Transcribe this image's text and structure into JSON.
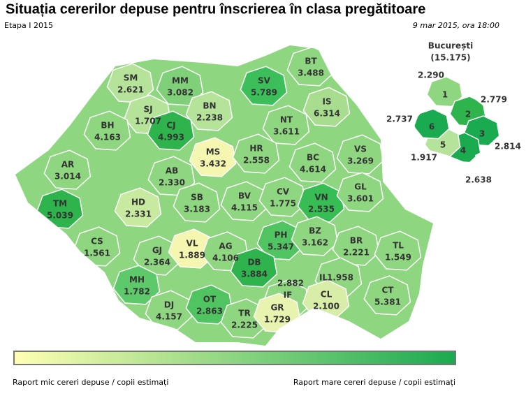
{
  "header": {
    "title": "Situația cererilor depuse pentru înscrierea în clasa pregătitoare",
    "subtitle": "Etapa I 2015",
    "timestamp": "9 mar 2015, ora 18:00"
  },
  "counties": [
    {
      "code": "SM",
      "value": "2.621"
    },
    {
      "code": "MM",
      "value": "3.082"
    },
    {
      "code": "BT",
      "value": "3.488"
    },
    {
      "code": "SV",
      "value": "5.789"
    },
    {
      "code": "SJ",
      "value": "1.707"
    },
    {
      "code": "BN",
      "value": "2.238"
    },
    {
      "code": "IS",
      "value": "6.314"
    },
    {
      "code": "BH",
      "value": "4.163"
    },
    {
      "code": "CJ",
      "value": "4.993"
    },
    {
      "code": "NT",
      "value": "3.611"
    },
    {
      "code": "MS",
      "value": "3.432"
    },
    {
      "code": "HR",
      "value": "2.558"
    },
    {
      "code": "VS",
      "value": "3.269"
    },
    {
      "code": "AR",
      "value": "3.014"
    },
    {
      "code": "AB",
      "value": "2.330"
    },
    {
      "code": "BC",
      "value": "4.614"
    },
    {
      "code": "TM",
      "value": "5.039"
    },
    {
      "code": "HD",
      "value": "2.331"
    },
    {
      "code": "SB",
      "value": "3.183"
    },
    {
      "code": "BV",
      "value": "4.115"
    },
    {
      "code": "CV",
      "value": "1.775"
    },
    {
      "code": "VN",
      "value": "2.535"
    },
    {
      "code": "GL",
      "value": "3.601"
    },
    {
      "code": "CS",
      "value": "1.561"
    },
    {
      "code": "GJ",
      "value": "2.364"
    },
    {
      "code": "VL",
      "value": "1.889"
    },
    {
      "code": "AG",
      "value": "4.106"
    },
    {
      "code": "PH",
      "value": "5.347"
    },
    {
      "code": "BZ",
      "value": "3.162"
    },
    {
      "code": "BR",
      "value": "2.221"
    },
    {
      "code": "TL",
      "value": "1.549"
    },
    {
      "code": "DB",
      "value": "3.884"
    },
    {
      "code": "MH",
      "value": "1.782"
    },
    {
      "code": "IL",
      "value": "1.958"
    },
    {
      "code": "DJ",
      "value": "4.157"
    },
    {
      "code": "OT",
      "value": "2.863"
    },
    {
      "code": "IF",
      "value": "2.882"
    },
    {
      "code": "CL",
      "value": "2.100"
    },
    {
      "code": "CT",
      "value": "5.381"
    },
    {
      "code": "TR",
      "value": "2.225"
    },
    {
      "code": "GR",
      "value": "1.729"
    }
  ],
  "bucharest": {
    "title": "București",
    "total": "(15.175)",
    "sectors": [
      {
        "number": "1",
        "value": "2.290"
      },
      {
        "number": "2",
        "value": "2.779"
      },
      {
        "number": "3",
        "value": "2.814"
      },
      {
        "number": "4",
        "value": "2.638"
      },
      {
        "number": "5",
        "value": "1.917"
      },
      {
        "number": "6",
        "value": "2.737"
      }
    ]
  },
  "legend": {
    "low": "Raport mic cereri depuse / copii estimați",
    "high": "Raport mare cereri depuse / copii estimați"
  }
}
